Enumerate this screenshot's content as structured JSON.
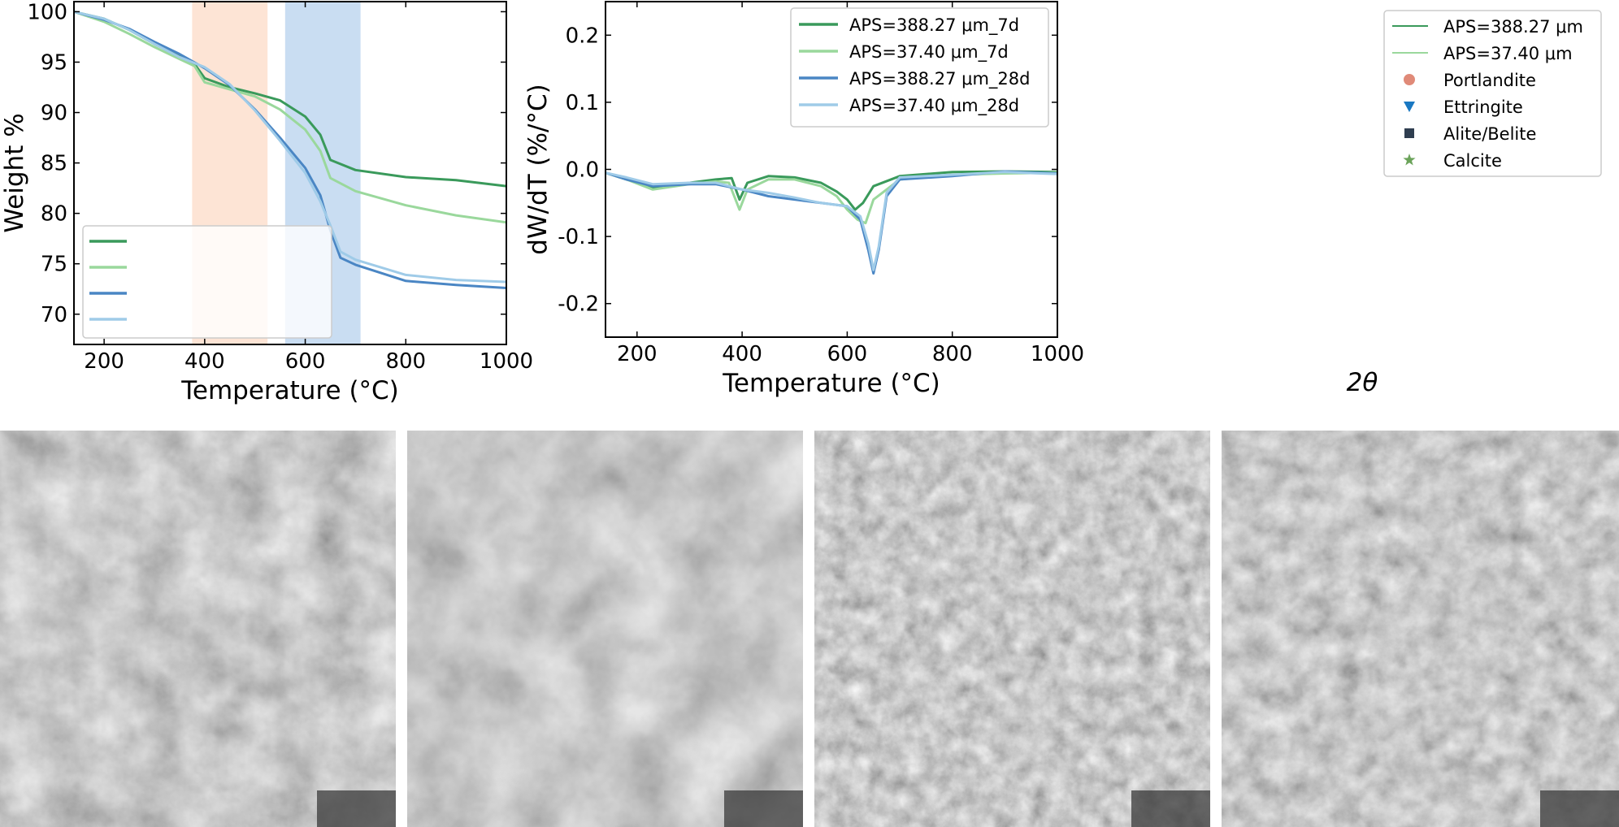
{
  "colors": {
    "green_dark": "#3a9a5b",
    "green_light": "#9ad89c",
    "blue_dark": "#4a86c4",
    "blue_light": "#9fcbe8",
    "band_orange": "#fde4d5",
    "band_blue": "#c9ddf2",
    "portlandite": "#e08a78",
    "ettringite": "#1a78c2",
    "alite_belite": "#2f3e50",
    "calcite": "#6ba35a"
  },
  "chart_data": [
    {
      "type": "line",
      "ylabel": "Weight %",
      "xlabel": "Temperature (°C)",
      "xlim": [
        140,
        1000
      ],
      "ylim": [
        67,
        101
      ],
      "xticks": [
        200,
        400,
        600,
        800,
        1000
      ],
      "yticks": [
        70,
        75,
        80,
        85,
        90,
        95,
        100
      ],
      "bands": [
        {
          "x0": 375,
          "x1": 525,
          "color": "band_orange"
        },
        {
          "x0": 560,
          "x1": 710,
          "color": "band_blue"
        }
      ],
      "legend": {
        "placement": "lower-left",
        "labels": [
          "",
          "",
          "",
          ""
        ]
      },
      "series": [
        {
          "color": "green_dark",
          "x": [
            140,
            200,
            250,
            300,
            350,
            380,
            400,
            450,
            500,
            550,
            600,
            630,
            650,
            700,
            800,
            900,
            1000
          ],
          "y": [
            100,
            99.3,
            98.2,
            96.8,
            95.6,
            94.8,
            93.4,
            92.5,
            91.9,
            91.2,
            89.6,
            87.8,
            85.3,
            84.3,
            83.6,
            83.3,
            82.7
          ]
        },
        {
          "color": "green_light",
          "x": [
            140,
            200,
            250,
            300,
            350,
            380,
            400,
            450,
            500,
            550,
            600,
            630,
            650,
            700,
            800,
            900,
            1000
          ],
          "y": [
            100,
            99.0,
            97.8,
            96.5,
            95.3,
            94.6,
            93.0,
            92.3,
            91.6,
            90.3,
            88.3,
            86.2,
            83.5,
            82.2,
            80.8,
            79.8,
            79.1
          ]
        },
        {
          "color": "blue_dark",
          "x": [
            140,
            200,
            250,
            300,
            350,
            400,
            450,
            500,
            550,
            600,
            630,
            650,
            670,
            700,
            800,
            900,
            1000
          ],
          "y": [
            100,
            99.2,
            98.3,
            97.0,
            95.8,
            94.4,
            92.7,
            90.3,
            87.5,
            84.5,
            81.8,
            78.3,
            75.6,
            74.9,
            73.3,
            72.9,
            72.6
          ]
        },
        {
          "color": "blue_light",
          "x": [
            140,
            200,
            250,
            300,
            350,
            400,
            450,
            500,
            550,
            600,
            630,
            650,
            670,
            700,
            800,
            900,
            1000
          ],
          "y": [
            100,
            99.3,
            98.2,
            96.8,
            95.5,
            94.5,
            92.8,
            90.2,
            87.2,
            84.0,
            81.2,
            78.8,
            76.2,
            75.4,
            73.9,
            73.4,
            73.2
          ]
        }
      ]
    },
    {
      "type": "line",
      "ylabel": "dW/dT (%/°C)",
      "xlabel": "Temperature (°C)",
      "xlim": [
        140,
        1000
      ],
      "ylim": [
        -0.25,
        0.25
      ],
      "xticks": [
        200,
        400,
        600,
        800,
        1000
      ],
      "yticks": [
        -0.2,
        -0.1,
        0.0,
        0.1,
        0.2
      ],
      "legend": {
        "placement": "top-right"
      },
      "series": [
        {
          "name": "APS=388.27 μm_7d",
          "color": "green_dark",
          "x": [
            140,
            180,
            230,
            300,
            350,
            380,
            395,
            410,
            450,
            500,
            550,
            580,
            600,
            615,
            630,
            650,
            700,
            800,
            900,
            1000
          ],
          "y": [
            -0.005,
            -0.015,
            -0.027,
            -0.02,
            -0.015,
            -0.013,
            -0.045,
            -0.02,
            -0.01,
            -0.012,
            -0.02,
            -0.033,
            -0.045,
            -0.06,
            -0.05,
            -0.025,
            -0.01,
            -0.004,
            -0.003,
            -0.004
          ]
        },
        {
          "name": "APS=37.40 μm_7d",
          "color": "green_light",
          "x": [
            140,
            180,
            230,
            300,
            350,
            375,
            395,
            410,
            450,
            500,
            550,
            580,
            600,
            620,
            635,
            650,
            700,
            800,
            900,
            1000
          ],
          "y": [
            -0.005,
            -0.015,
            -0.03,
            -0.022,
            -0.018,
            -0.02,
            -0.06,
            -0.03,
            -0.015,
            -0.015,
            -0.025,
            -0.04,
            -0.06,
            -0.075,
            -0.08,
            -0.045,
            -0.015,
            -0.008,
            -0.006,
            -0.005
          ]
        },
        {
          "name": "APS=388.27 μm_28d",
          "color": "blue_dark",
          "x": [
            140,
            180,
            230,
            300,
            350,
            400,
            450,
            500,
            550,
            600,
            625,
            640,
            650,
            660,
            675,
            700,
            800,
            900,
            1000
          ],
          "y": [
            -0.005,
            -0.015,
            -0.025,
            -0.022,
            -0.022,
            -0.03,
            -0.04,
            -0.045,
            -0.05,
            -0.055,
            -0.075,
            -0.12,
            -0.155,
            -0.12,
            -0.04,
            -0.015,
            -0.01,
            -0.003,
            -0.006
          ]
        },
        {
          "name": "APS=37.40 μm_28d",
          "color": "blue_light",
          "x": [
            140,
            180,
            230,
            300,
            350,
            400,
            450,
            500,
            550,
            600,
            625,
            640,
            650,
            660,
            675,
            700,
            800,
            900,
            1000
          ],
          "y": [
            -0.005,
            -0.012,
            -0.022,
            -0.02,
            -0.02,
            -0.03,
            -0.035,
            -0.042,
            -0.05,
            -0.055,
            -0.07,
            -0.11,
            -0.15,
            -0.115,
            -0.035,
            -0.012,
            -0.008,
            -0.004,
            -0.007
          ]
        }
      ]
    },
    {
      "type": "line",
      "xlabel": "2θ",
      "legend": {
        "placement": "top-right",
        "entries": [
          {
            "label": "APS=388.27 μm",
            "kind": "line",
            "color": "green_dark"
          },
          {
            "label": "APS=37.40 μm",
            "kind": "line",
            "color": "green_light"
          },
          {
            "label": "Portlandite",
            "kind": "circle",
            "color": "portlandite"
          },
          {
            "label": "Ettringite",
            "kind": "triangle-down",
            "color": "ettringite"
          },
          {
            "label": "Alite/Belite",
            "kind": "square",
            "color": "alite_belite"
          },
          {
            "label": "Calcite",
            "kind": "star",
            "color": "calcite"
          }
        ]
      }
    }
  ],
  "sem_images": [
    {
      "name": "sem-image-1",
      "description_icon": "sem-micrograph-icon"
    },
    {
      "name": "sem-image-2",
      "description_icon": "sem-micrograph-icon"
    },
    {
      "name": "sem-image-3",
      "description_icon": "sem-micrograph-icon"
    },
    {
      "name": "sem-image-4",
      "description_icon": "sem-micrograph-icon"
    }
  ]
}
